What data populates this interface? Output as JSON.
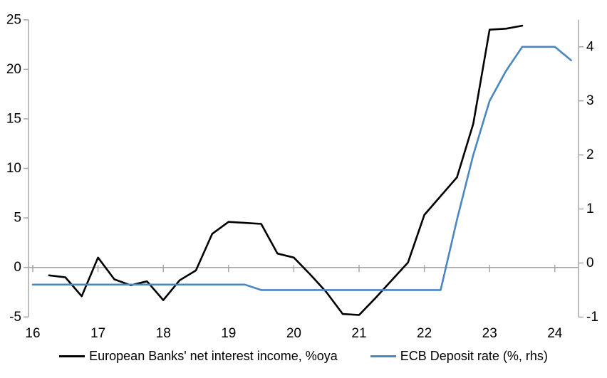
{
  "chart_data": {
    "type": "line",
    "title": "",
    "legend_position": "bottom",
    "grid": "zero-line-only",
    "x_axis": {
      "tick_values": [
        16,
        17,
        18,
        19,
        20,
        21,
        22,
        23,
        24
      ],
      "tick_labels": [
        "16",
        "17",
        "18",
        "19",
        "20",
        "21",
        "22",
        "23",
        "24"
      ],
      "range": [
        15.93,
        24.37
      ]
    },
    "y_left": {
      "tick_values": [
        -5,
        0,
        5,
        10,
        15,
        20,
        25
      ],
      "tick_labels": [
        "-5",
        "0",
        "5",
        "10",
        "15",
        "20",
        "25"
      ],
      "range": [
        -5,
        25
      ]
    },
    "y_right": {
      "tick_values": [
        -1,
        0,
        1,
        2,
        3,
        4
      ],
      "tick_labels": [
        "-1",
        "0",
        "1",
        "2",
        "3",
        "4"
      ],
      "range": [
        -1,
        4.5
      ]
    },
    "series": [
      {
        "name": "European Banks' net interest income, %oya",
        "axis": "left",
        "color": "#000000",
        "x": [
          16.25,
          16.5,
          16.75,
          17.0,
          17.25,
          17.5,
          17.75,
          18.0,
          18.25,
          18.5,
          18.75,
          19.0,
          19.25,
          19.5,
          19.75,
          20.0,
          20.25,
          20.5,
          20.75,
          21.0,
          21.25,
          21.5,
          21.75,
          22.0,
          22.25,
          22.5,
          22.75,
          23.0,
          23.25,
          23.5
        ],
        "values": [
          -0.8,
          -1.0,
          -2.9,
          1.0,
          -1.2,
          -1.8,
          -1.4,
          -3.3,
          -1.3,
          -0.3,
          3.4,
          4.6,
          4.5,
          4.4,
          1.4,
          1.0,
          -0.7,
          -2.5,
          -4.7,
          -4.8,
          -3.1,
          -1.3,
          0.5,
          5.3,
          7.2,
          9.1,
          14.5,
          24.0,
          24.1,
          24.4
        ]
      },
      {
        "name": "ECB Deposit rate (%, rhs)",
        "axis": "right",
        "color": "#4a86c0",
        "x": [
          16.0,
          16.25,
          16.5,
          16.75,
          17.0,
          17.25,
          17.5,
          17.75,
          18.0,
          18.25,
          18.5,
          18.75,
          19.0,
          19.25,
          19.5,
          19.75,
          20.0,
          20.25,
          20.5,
          20.75,
          21.0,
          21.25,
          21.5,
          21.75,
          22.0,
          22.25,
          22.5,
          22.75,
          23.0,
          23.25,
          23.5,
          23.75,
          24.0,
          24.25
        ],
        "values": [
          -0.4,
          -0.4,
          -0.4,
          -0.4,
          -0.4,
          -0.4,
          -0.4,
          -0.4,
          -0.4,
          -0.4,
          -0.4,
          -0.4,
          -0.4,
          -0.4,
          -0.5,
          -0.5,
          -0.5,
          -0.5,
          -0.5,
          -0.5,
          -0.5,
          -0.5,
          -0.5,
          -0.5,
          -0.5,
          -0.5,
          0.8,
          2.0,
          3.0,
          3.55,
          4.0,
          4.0,
          4.0,
          3.75
        ]
      }
    ],
    "colors": {
      "axis_line": "#a6a6a6",
      "zero_line": "#a6a6a6",
      "tick_text": "#000000",
      "background": "#ffffff"
    }
  }
}
